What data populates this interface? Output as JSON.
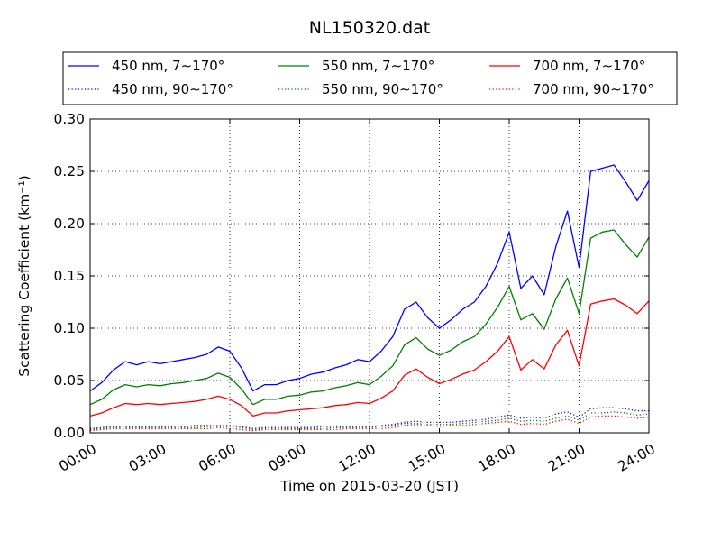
{
  "chart_data": {
    "type": "line",
    "title": "NL150320.dat",
    "xlabel": "Time on 2015-03-20 (JST)",
    "ylabel": "Scattering Coefficient (km⁻¹)",
    "xlim": [
      "00:00",
      "24:00"
    ],
    "ylim": [
      0.0,
      0.3
    ],
    "x_ticks": [
      "00:00",
      "03:00",
      "06:00",
      "09:00",
      "12:00",
      "15:00",
      "18:00",
      "21:00",
      "24:00"
    ],
    "y_ticks": [
      "0.00",
      "0.05",
      "0.10",
      "0.15",
      "0.20",
      "0.25",
      "0.30"
    ],
    "grid": true,
    "legend_position": "top, above plot, 3 columns",
    "x": [
      "00:00",
      "00:30",
      "01:00",
      "01:30",
      "02:00",
      "02:30",
      "03:00",
      "03:30",
      "04:00",
      "04:30",
      "05:00",
      "05:30",
      "06:00",
      "06:30",
      "07:00",
      "07:30",
      "08:00",
      "08:30",
      "09:00",
      "09:30",
      "10:00",
      "10:30",
      "11:00",
      "11:30",
      "12:00",
      "12:30",
      "13:00",
      "13:30",
      "14:00",
      "14:30",
      "15:00",
      "15:30",
      "16:00",
      "16:30",
      "17:00",
      "17:30",
      "18:00",
      "18:30",
      "19:00",
      "19:30",
      "20:00",
      "20:30",
      "21:00",
      "21:30",
      "22:00",
      "22:30",
      "23:00",
      "23:30",
      "24:00"
    ],
    "series": [
      {
        "name": "450 nm, 7∼170°",
        "color": "#0000ff",
        "style": "solid",
        "values": [
          0.04,
          0.048,
          0.06,
          0.068,
          0.065,
          0.068,
          0.066,
          0.068,
          0.07,
          0.072,
          0.075,
          0.082,
          0.078,
          0.062,
          0.04,
          0.046,
          0.046,
          0.05,
          0.052,
          0.056,
          0.058,
          0.062,
          0.065,
          0.07,
          0.068,
          0.078,
          0.092,
          0.118,
          0.125,
          0.11,
          0.1,
          0.108,
          0.118,
          0.125,
          0.14,
          0.162,
          0.192,
          0.138,
          0.15,
          0.132,
          0.178,
          0.212,
          0.158,
          0.25,
          0.253,
          0.256,
          0.24,
          0.222,
          0.241
        ]
      },
      {
        "name": "450 nm, 90∼170°",
        "color": "#0000ff",
        "style": "dotted",
        "values": [
          0.004,
          0.005,
          0.006,
          0.006,
          0.006,
          0.006,
          0.006,
          0.006,
          0.006,
          0.007,
          0.007,
          0.007,
          0.007,
          0.006,
          0.004,
          0.005,
          0.005,
          0.005,
          0.005,
          0.005,
          0.006,
          0.006,
          0.006,
          0.006,
          0.006,
          0.007,
          0.008,
          0.01,
          0.011,
          0.01,
          0.01,
          0.01,
          0.011,
          0.012,
          0.013,
          0.015,
          0.017,
          0.014,
          0.015,
          0.014,
          0.018,
          0.02,
          0.015,
          0.023,
          0.024,
          0.024,
          0.023,
          0.021,
          0.021
        ]
      },
      {
        "name": "550 nm, 7∼170°",
        "color": "#008000",
        "style": "solid",
        "values": [
          0.027,
          0.032,
          0.041,
          0.046,
          0.044,
          0.046,
          0.045,
          0.047,
          0.048,
          0.05,
          0.052,
          0.057,
          0.053,
          0.042,
          0.027,
          0.032,
          0.032,
          0.035,
          0.036,
          0.039,
          0.04,
          0.043,
          0.045,
          0.048,
          0.046,
          0.054,
          0.064,
          0.084,
          0.091,
          0.08,
          0.074,
          0.079,
          0.087,
          0.092,
          0.104,
          0.12,
          0.14,
          0.108,
          0.114,
          0.099,
          0.128,
          0.148,
          0.114,
          0.186,
          0.192,
          0.194,
          0.18,
          0.168,
          0.187
        ]
      },
      {
        "name": "550 nm, 90∼170°",
        "color": "#008000",
        "style": "dotted",
        "values": [
          0.003,
          0.004,
          0.005,
          0.005,
          0.005,
          0.005,
          0.005,
          0.005,
          0.005,
          0.005,
          0.006,
          0.006,
          0.006,
          0.005,
          0.003,
          0.004,
          0.004,
          0.004,
          0.004,
          0.004,
          0.004,
          0.005,
          0.005,
          0.005,
          0.005,
          0.006,
          0.007,
          0.009,
          0.009,
          0.008,
          0.008,
          0.008,
          0.009,
          0.01,
          0.011,
          0.012,
          0.014,
          0.011,
          0.012,
          0.011,
          0.014,
          0.016,
          0.012,
          0.019,
          0.019,
          0.02,
          0.019,
          0.017,
          0.018
        ]
      },
      {
        "name": "700 nm, 7∼170°",
        "color": "#ff0000",
        "style": "solid",
        "values": [
          0.016,
          0.019,
          0.024,
          0.028,
          0.027,
          0.028,
          0.027,
          0.028,
          0.029,
          0.03,
          0.032,
          0.035,
          0.032,
          0.026,
          0.016,
          0.019,
          0.019,
          0.021,
          0.022,
          0.023,
          0.024,
          0.026,
          0.027,
          0.029,
          0.028,
          0.033,
          0.04,
          0.055,
          0.061,
          0.053,
          0.047,
          0.051,
          0.056,
          0.06,
          0.068,
          0.078,
          0.092,
          0.06,
          0.07,
          0.061,
          0.084,
          0.098,
          0.064,
          0.123,
          0.126,
          0.128,
          0.122,
          0.114,
          0.126
        ]
      },
      {
        "name": "700 nm, 90∼170°",
        "color": "#ff0000",
        "style": "dotted",
        "values": [
          0.002,
          0.003,
          0.004,
          0.004,
          0.004,
          0.004,
          0.004,
          0.004,
          0.004,
          0.004,
          0.004,
          0.005,
          0.004,
          0.003,
          0.002,
          0.003,
          0.003,
          0.003,
          0.003,
          0.003,
          0.003,
          0.003,
          0.004,
          0.004,
          0.004,
          0.004,
          0.005,
          0.007,
          0.008,
          0.007,
          0.006,
          0.007,
          0.007,
          0.008,
          0.009,
          0.01,
          0.011,
          0.008,
          0.009,
          0.008,
          0.011,
          0.013,
          0.009,
          0.015,
          0.016,
          0.016,
          0.015,
          0.014,
          0.015
        ]
      }
    ]
  }
}
